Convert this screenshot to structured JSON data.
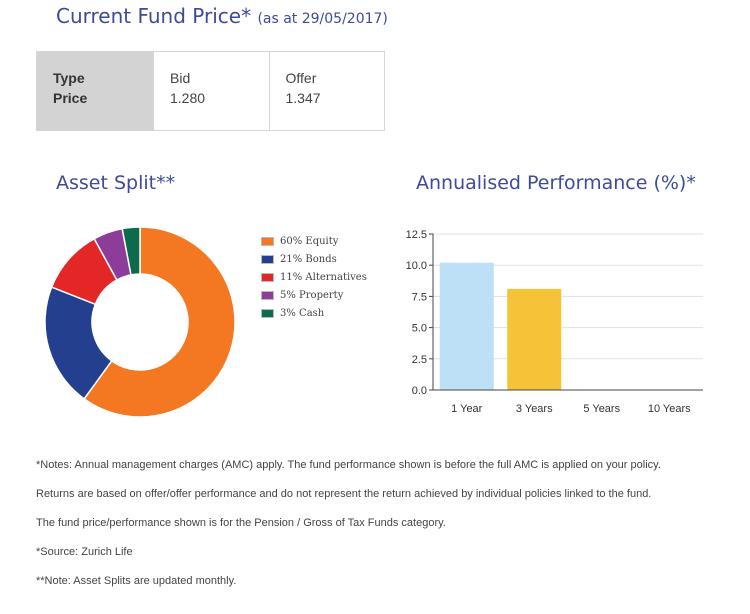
{
  "fund": {
    "title": "Current Fund Price*",
    "as_of": "(as at 29/05/2017)",
    "table": {
      "row1_header": "Type",
      "row2_header": "Price",
      "columns": [
        {
          "type": "Bid",
          "price": "1.280"
        },
        {
          "type": "Offer",
          "price": "1.347"
        }
      ]
    }
  },
  "asset_split": {
    "title": "Asset Split**"
  },
  "performance": {
    "title": "Annualised Performance (%)*"
  },
  "chart_data": [
    {
      "type": "pie",
      "variant": "donut",
      "title": "Asset Split**",
      "categories": [
        "60% Equity",
        "21% Bonds",
        "11% Alternatives",
        "5% Property",
        "3% Cash"
      ],
      "values": [
        60,
        21,
        11,
        5,
        3
      ],
      "colors": [
        "#f47721",
        "#253f8f",
        "#e32726",
        "#8d3d99",
        "#0b6b4a"
      ],
      "legend": "right"
    },
    {
      "type": "bar",
      "title": "Annualised Performance (%)*",
      "categories": [
        "1 Year",
        "3 Years",
        "5 Years",
        "10 Years"
      ],
      "values": [
        10.2,
        8.1,
        null,
        null
      ],
      "colors": [
        "#bde0f7",
        "#f5c238",
        "#cccccc",
        "#cccccc"
      ],
      "ylim": [
        0,
        12.5
      ],
      "yticks": [
        "0.0",
        "2.5",
        "5.0",
        "7.5",
        "10.0",
        "12.5"
      ],
      "grid": true
    }
  ],
  "notes": [
    "*Notes: Annual management charges (AMC) apply. The fund performance shown is before the full AMC is applied on your policy.",
    "Returns are based on offer/offer performance and do not represent the return achieved by individual policies linked to the fund.",
    "The fund price/performance shown is for the Pension / Gross of Tax Funds category.",
    "*Source: Zurich Life",
    "**Note: Asset Splits are updated monthly."
  ]
}
